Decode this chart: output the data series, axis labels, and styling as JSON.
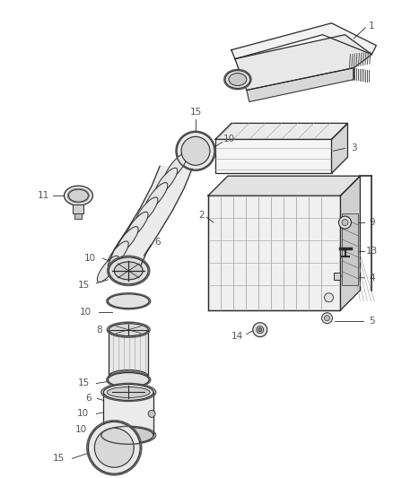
{
  "background_color": "#ffffff",
  "label_color": "#555555",
  "line_color": "#2a2a2a",
  "label_fontsize": 7.5,
  "line_width": 0.9
}
